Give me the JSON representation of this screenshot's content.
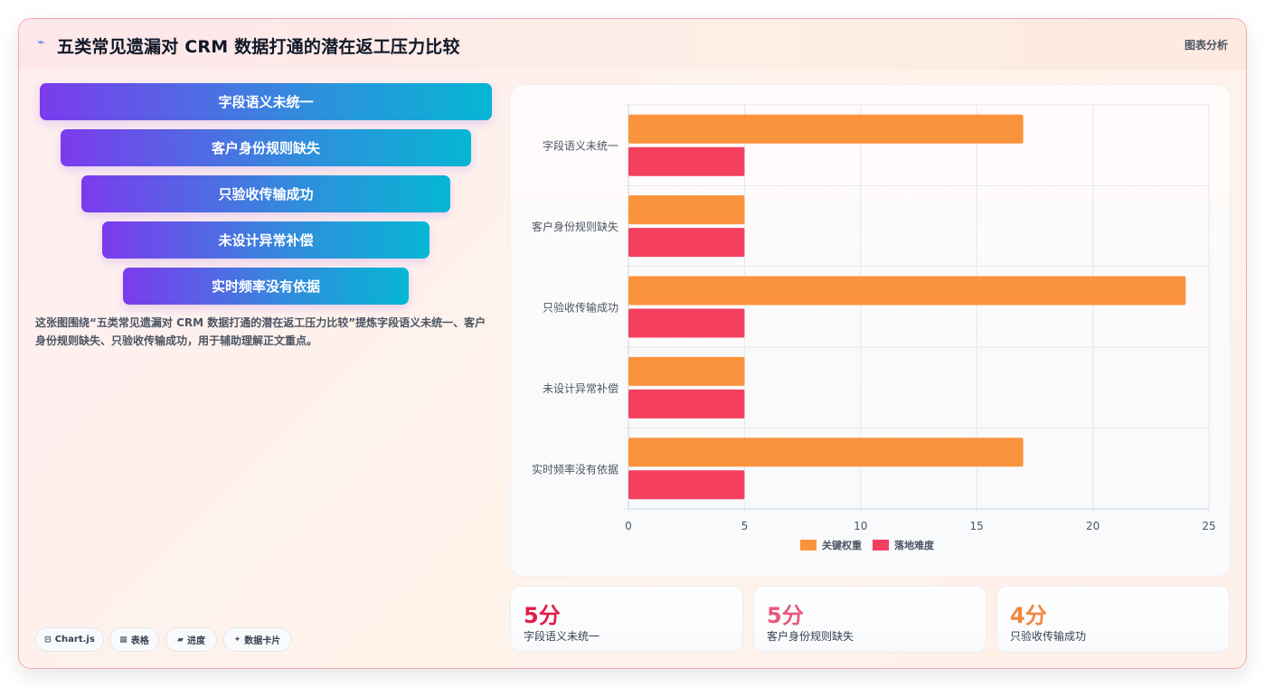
{
  "header": {
    "title": "五类常见遗漏对 CRM 数据打通的潜在返工压力比较",
    "tag": "图表分析"
  },
  "funnel": [
    {
      "label": "字段语义未统一"
    },
    {
      "label": "客户身份规则缺失"
    },
    {
      "label": "只验收传输成功"
    },
    {
      "label": "未设计异常补偿"
    },
    {
      "label": "实时频率没有依据"
    }
  ],
  "description": "这张图围绕“五类常见遗漏对 CRM 数据打通的潜在返工压力比较”提炼字段语义未统一、客户身份规则缺失、只验收传输成功，用于辅助理解正文重点。",
  "chips": [
    {
      "icon": "⊟",
      "label": "Chart.js"
    },
    {
      "icon": "▦",
      "label": "表格"
    },
    {
      "icon": "▰",
      "label": "进度"
    },
    {
      "icon": "✦",
      "label": "数据卡片"
    }
  ],
  "chart_data": {
    "type": "bar",
    "orientation": "horizontal",
    "categories": [
      "字段语义未统一",
      "客户身份规则缺失",
      "只验收传输成功",
      "未设计异常补偿",
      "实时频率没有依据"
    ],
    "series": [
      {
        "name": "关键权重",
        "values": [
          17,
          5,
          24,
          5,
          17
        ],
        "color": "#fb923c"
      },
      {
        "name": "落地难度",
        "values": [
          5,
          5,
          5,
          5,
          5
        ],
        "color": "#f43f5e"
      }
    ],
    "xlim": [
      0,
      25
    ],
    "xticks": [
      0,
      5,
      10,
      15,
      20,
      25
    ],
    "grid": true,
    "legend": "bottom"
  },
  "stats": [
    {
      "value": "5分",
      "label": "字段语义未统一",
      "color": "#e11d48"
    },
    {
      "value": "5分",
      "label": "客户身份规则缺失",
      "color": "#e8577d"
    },
    {
      "value": "4分",
      "label": "只验收传输成功",
      "color": "#f0883e"
    }
  ]
}
